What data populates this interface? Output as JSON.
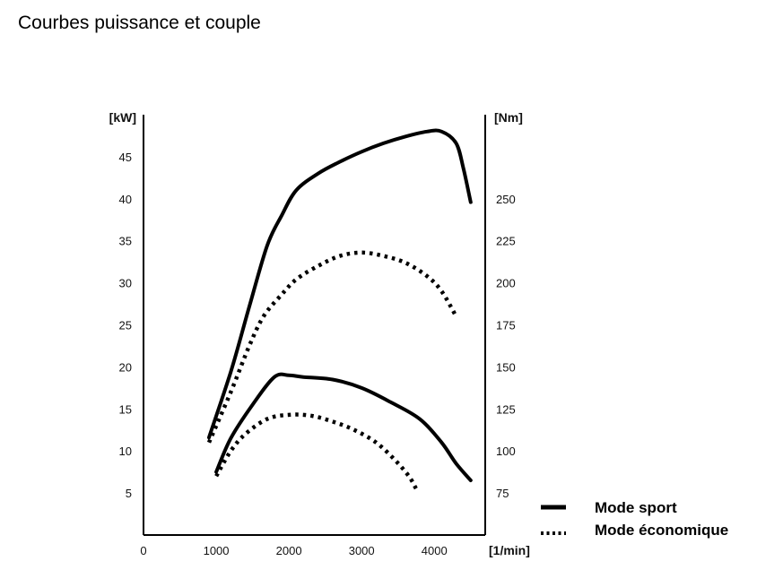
{
  "page": {
    "title": "Courbes puissance et couple"
  },
  "chart_data": {
    "type": "line",
    "title": "Courbes puissance et couple",
    "x_axis": {
      "unit_label": "[1/min]",
      "ticks": [
        0,
        1000,
        2000,
        3000,
        4000
      ],
      "range": [
        0,
        4700
      ]
    },
    "y_axis_left": {
      "unit_label": "[kW]",
      "ticks": [
        5,
        10,
        15,
        20,
        25,
        30,
        35,
        40,
        45
      ],
      "range": [
        0,
        50
      ]
    },
    "y_axis_right": {
      "unit_label": "[Nm]",
      "ticks": [
        75,
        100,
        125,
        150,
        175,
        200,
        225,
        250
      ],
      "range": [
        50,
        300
      ]
    },
    "grid": false,
    "legend": {
      "position": "bottom-right",
      "entries": [
        {
          "label": "Mode sport",
          "style": "solid"
        },
        {
          "label": "Mode économique",
          "style": "dotted"
        }
      ]
    },
    "series": [
      {
        "axis": "right",
        "style": "solid",
        "points": [
          [
            900,
            108
          ],
          [
            1200,
            147
          ],
          [
            1450,
            185
          ],
          [
            1700,
            222
          ],
          [
            1900,
            240
          ],
          [
            2100,
            255
          ],
          [
            2400,
            265
          ],
          [
            2700,
            272
          ],
          [
            3000,
            278
          ],
          [
            3300,
            283
          ],
          [
            3600,
            287
          ],
          [
            3900,
            290
          ],
          [
            4100,
            290
          ],
          [
            4300,
            283
          ],
          [
            4400,
            268
          ],
          [
            4500,
            248
          ]
        ]
      },
      {
        "axis": "right",
        "style": "dotted",
        "points": [
          [
            900,
            105
          ],
          [
            1200,
            135
          ],
          [
            1450,
            162
          ],
          [
            1650,
            180
          ],
          [
            1900,
            193
          ],
          [
            2100,
            202
          ],
          [
            2400,
            210
          ],
          [
            2700,
            216
          ],
          [
            3000,
            218
          ],
          [
            3300,
            216
          ],
          [
            3600,
            212
          ],
          [
            3900,
            204
          ],
          [
            4100,
            195
          ],
          [
            4300,
            180
          ]
        ]
      },
      {
        "axis": "left",
        "style": "solid",
        "points": [
          [
            1000,
            7.5
          ],
          [
            1200,
            11.5
          ],
          [
            1500,
            15.5
          ],
          [
            1800,
            18.8
          ],
          [
            2000,
            19
          ],
          [
            2200,
            18.8
          ],
          [
            2600,
            18.5
          ],
          [
            3000,
            17.5
          ],
          [
            3400,
            15.8
          ],
          [
            3800,
            13.8
          ],
          [
            4100,
            11
          ],
          [
            4300,
            8.5
          ],
          [
            4500,
            6.5
          ]
        ]
      },
      {
        "axis": "left",
        "style": "dotted",
        "points": [
          [
            1000,
            7
          ],
          [
            1200,
            10
          ],
          [
            1400,
            12
          ],
          [
            1700,
            13.8
          ],
          [
            2000,
            14.3
          ],
          [
            2300,
            14.2
          ],
          [
            2600,
            13.5
          ],
          [
            2900,
            12.5
          ],
          [
            3200,
            11
          ],
          [
            3450,
            9
          ],
          [
            3650,
            7
          ],
          [
            3750,
            5.5
          ]
        ]
      }
    ]
  }
}
